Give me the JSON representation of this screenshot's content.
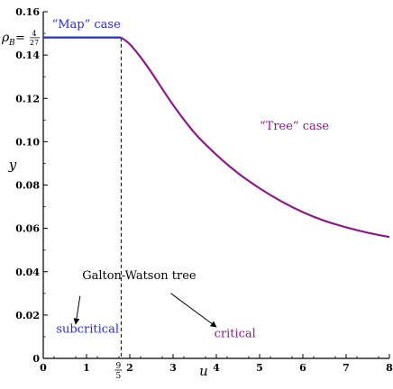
{
  "chart_data": {
    "type": "line",
    "xlabel": "u",
    "ylabel": "y",
    "xlim": [
      0,
      8
    ],
    "ylim": [
      0,
      0.16
    ],
    "x_ticks": [
      {
        "value": 0,
        "label": "0"
      },
      {
        "value": 1,
        "label": "1"
      },
      {
        "value": 2,
        "label": "2"
      },
      {
        "value": 3,
        "label": "3"
      },
      {
        "value": 4,
        "label": "4"
      },
      {
        "value": 5,
        "label": "5"
      },
      {
        "value": 6,
        "label": "6"
      },
      {
        "value": 7,
        "label": "7"
      },
      {
        "value": 8,
        "label": "8"
      }
    ],
    "y_ticks": [
      {
        "value": 0,
        "label": "0"
      },
      {
        "value": 0.02,
        "label": "0.02"
      },
      {
        "value": 0.04,
        "label": "0.04"
      },
      {
        "value": 0.06,
        "label": "0.06"
      },
      {
        "value": 0.08,
        "label": "0.08"
      },
      {
        "value": 0.1,
        "label": "0.10"
      },
      {
        "value": 0.12,
        "label": "0.12"
      },
      {
        "value": 0.14,
        "label": "0.14"
      },
      {
        "value": 0.16,
        "label": "0.16"
      }
    ],
    "special_x_tick": {
      "value": 1.8,
      "numerator": "9",
      "denominator": "5"
    },
    "special_y_label": {
      "value": 0.148,
      "prefix": "ρ",
      "subscript": "B",
      "equals": " = ",
      "numerator": "4",
      "denominator": "27"
    },
    "vline_x": 1.8,
    "series": [
      {
        "color": "#2b2bd4",
        "x": [
          0,
          0.5,
          1.0,
          1.5,
          1.8
        ],
        "y": [
          0.1481,
          0.1481,
          0.1481,
          0.1481,
          0.1481
        ]
      },
      {
        "color": "#8b1a8b",
        "x": [
          1.8,
          2.0,
          2.25,
          2.5,
          3.0,
          3.5,
          4.0,
          4.5,
          5.0,
          5.5,
          6.0,
          6.5,
          7.0,
          7.5,
          8.0
        ],
        "y": [
          0.1481,
          0.145,
          0.139,
          0.132,
          0.117,
          0.104,
          0.094,
          0.0855,
          0.0785,
          0.0725,
          0.0675,
          0.0635,
          0.0605,
          0.058,
          0.056
        ]
      }
    ],
    "annotations": [
      {
        "id": "map",
        "text": "“Map” case",
        "x": 0.2,
        "y": 0.1525,
        "color": "#2b2bd4"
      },
      {
        "id": "tree",
        "text": "“Tree” case",
        "x": 5.0,
        "y": 0.1055,
        "color": "#8b1a8b"
      },
      {
        "id": "gw",
        "text": "Galton-Watson tree",
        "x": 0.9,
        "y": 0.0365,
        "color": "#000000"
      },
      {
        "id": "subcritical",
        "text": "subcritical",
        "x": 0.3,
        "y": 0.0118,
        "color": "#2b2bd4"
      },
      {
        "id": "critical",
        "text": "critical",
        "x": 3.95,
        "y": 0.0098,
        "color": "#8b1a8b"
      }
    ],
    "arrows": [
      {
        "from": [
          0.85,
          0.0288
        ],
        "to": [
          0.75,
          0.0158
        ]
      },
      {
        "from": [
          2.95,
          0.03
        ],
        "to": [
          4.0,
          0.0145
        ]
      }
    ]
  }
}
